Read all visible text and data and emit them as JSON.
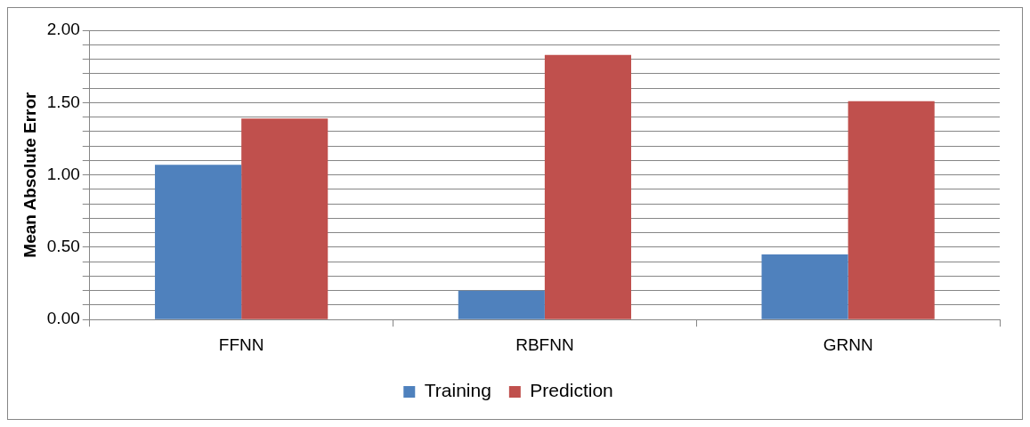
{
  "chart_data": {
    "type": "bar",
    "ylabel": "Mean Absolute Error",
    "categories": [
      "FFNN",
      "RBFNN",
      "GRNN"
    ],
    "series": [
      {
        "name": "Training",
        "color": "#4f81bd",
        "values": [
          1.07,
          0.2,
          0.45
        ]
      },
      {
        "name": "Prediction",
        "color": "#c0504d",
        "values": [
          1.39,
          1.83,
          1.51
        ]
      }
    ],
    "ylim": [
      0,
      2
    ],
    "yticks": [
      {
        "value": 0,
        "label": "0.00"
      },
      {
        "value": 0.1,
        "label": null
      },
      {
        "value": 0.2,
        "label": null
      },
      {
        "value": 0.3,
        "label": null
      },
      {
        "value": 0.4,
        "label": null
      },
      {
        "value": 0.5,
        "label": "0.50"
      },
      {
        "value": 0.6,
        "label": null
      },
      {
        "value": 0.7,
        "label": null
      },
      {
        "value": 0.8,
        "label": null
      },
      {
        "value": 0.9,
        "label": null
      },
      {
        "value": 1,
        "label": "1.00"
      },
      {
        "value": 1.1,
        "label": null
      },
      {
        "value": 1.2,
        "label": null
      },
      {
        "value": 1.3,
        "label": null
      },
      {
        "value": 1.4,
        "label": null
      },
      {
        "value": 1.5,
        "label": "1.50"
      },
      {
        "value": 1.6,
        "label": null
      },
      {
        "value": 1.7,
        "label": null
      },
      {
        "value": 1.8,
        "label": null
      },
      {
        "value": 1.9,
        "label": null
      },
      {
        "value": 2,
        "label": "2.00"
      }
    ],
    "grid": "y",
    "legend": "bottom"
  }
}
